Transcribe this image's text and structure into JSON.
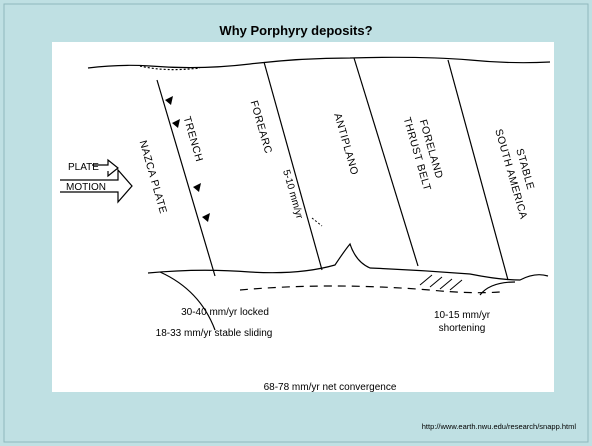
{
  "title": "Why Porphyry deposits?",
  "diagram": {
    "plate_motion": [
      "PLATE",
      "MOTION"
    ],
    "zones": [
      "NAZCA PLATE",
      "TRENCH",
      "FOREARC",
      "ANTIPLANO",
      "FORELAND",
      "THRUST BELT",
      "STABLE",
      "SOUTH AMERICA"
    ],
    "forearc_rate": "5-10 mm/yr",
    "locked": "30-40 mm/yr locked",
    "sliding": "18-33 mm/yr stable sliding",
    "shortening": [
      "10-15 mm/yr",
      "shortening"
    ],
    "convergence": "68-78 mm/yr net convergence"
  },
  "source": "http://www.earth.nwu.edu/research/snapp.html"
}
